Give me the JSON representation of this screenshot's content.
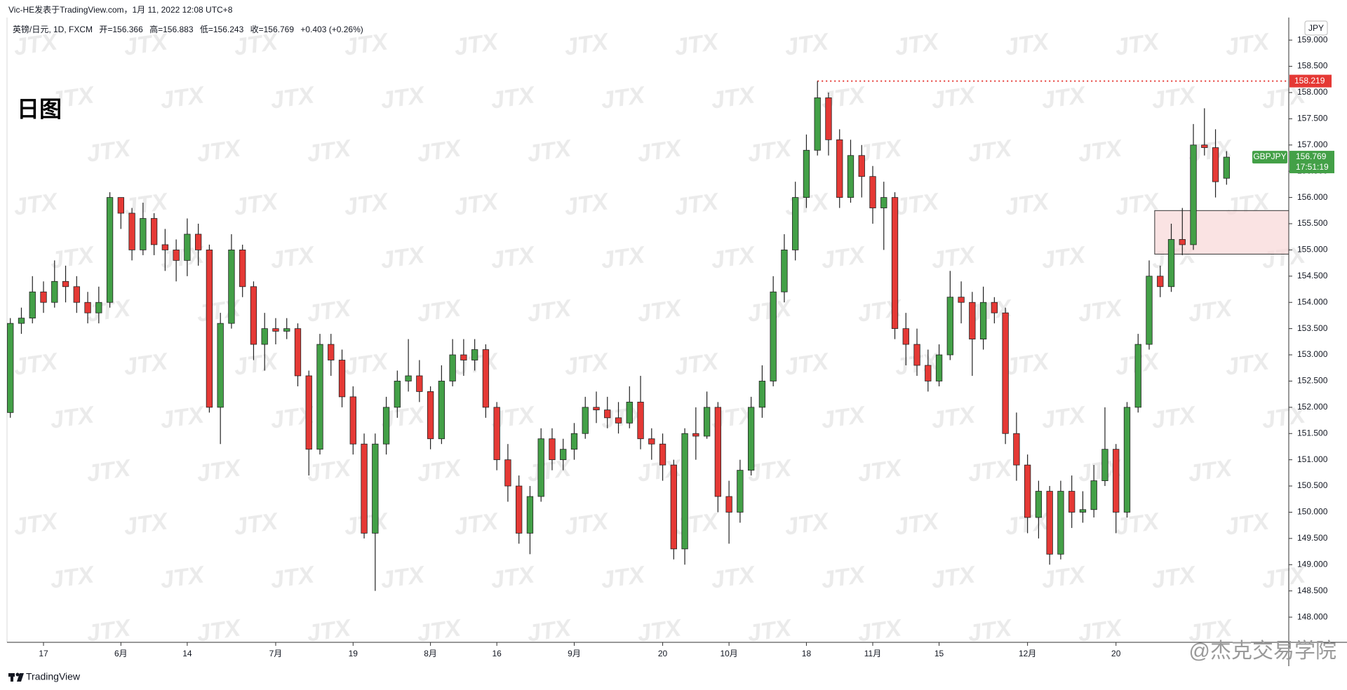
{
  "header": {
    "author": "Vic-HE发表于TradingView.com，1月 11, 2022 12:08 UTC+8",
    "title": "日图",
    "footer": "TradingView",
    "watermark": "JTX",
    "signature": "@杰克交易学院"
  },
  "legend": {
    "symbol": "英镑/日元, 1D, FXCM",
    "open": "开=",
    "high": "高=",
    "low": "低=",
    "close": "收=",
    "change": "+0.403 (+0.26%)"
  },
  "chart_data": {
    "type": "candlestick",
    "currency": "JPY",
    "countdown": "17:51:19",
    "up_color": "#43a047",
    "down_color": "#e53935",
    "wick_color": "#222222",
    "ylim": [
      147.52,
      159.43
    ],
    "yticks": [
      {
        "value": 148,
        "label": "148.000"
      },
      {
        "value": 148.5,
        "label": "148.500"
      },
      {
        "value": 149,
        "label": "149.000"
      },
      {
        "value": 149.5,
        "label": "149.500"
      },
      {
        "value": 150,
        "label": "150.000"
      },
      {
        "value": 150.5,
        "label": "150.500"
      },
      {
        "value": 151,
        "label": "151.000"
      },
      {
        "value": 151.5,
        "label": "151.500"
      },
      {
        "value": 152,
        "label": "152.000"
      },
      {
        "value": 152.5,
        "label": "152.500"
      },
      {
        "value": 153,
        "label": "153.000"
      },
      {
        "value": 153.5,
        "label": "153.500"
      },
      {
        "value": 154,
        "label": "154.000"
      },
      {
        "value": 154.5,
        "label": "154.500"
      },
      {
        "value": 155,
        "label": "155.000"
      },
      {
        "value": 155.5,
        "label": "155.500"
      },
      {
        "value": 156,
        "label": "156.000"
      },
      {
        "value": 156.5,
        "label": "156.500"
      },
      {
        "value": 157,
        "label": "157.000"
      },
      {
        "value": 157.5,
        "label": "157.500"
      },
      {
        "value": 158,
        "label": "158.000"
      },
      {
        "value": 158.5,
        "label": "158.500"
      },
      {
        "value": 159,
        "label": "159.000"
      }
    ],
    "categories": [
      null,
      null,
      null,
      "17",
      null,
      null,
      null,
      null,
      null,
      null,
      "6月",
      null,
      null,
      null,
      null,
      null,
      "14",
      null,
      null,
      null,
      null,
      null,
      null,
      null,
      "7月",
      null,
      null,
      null,
      null,
      null,
      null,
      "19",
      null,
      null,
      null,
      null,
      null,
      null,
      "8月",
      null,
      null,
      null,
      null,
      null,
      "16",
      null,
      null,
      null,
      null,
      null,
      null,
      "9月",
      null,
      null,
      null,
      null,
      null,
      null,
      null,
      "20",
      null,
      null,
      null,
      null,
      null,
      "10月",
      null,
      null,
      null,
      null,
      null,
      null,
      "18",
      null,
      null,
      null,
      null,
      null,
      "11月",
      null,
      null,
      null,
      null,
      null,
      "15",
      null,
      null,
      null,
      null,
      null,
      null,
      null,
      "12月",
      null,
      null,
      null,
      null,
      null,
      null,
      null,
      "20",
      null,
      null,
      null,
      null,
      null,
      null,
      null,
      null,
      null,
      null
    ],
    "zone": {
      "start": 104,
      "top": 155.75,
      "bottom": 154.92,
      "color": "#f8d7d7"
    },
    "high_line": {
      "candle": 73,
      "color": "#e53935"
    },
    "series": [
      {
        "name": "GBPJPY",
        "color": "#43a047",
        "values": [
          [
            151.9,
            153.7,
            151.8,
            153.6
          ],
          [
            153.6,
            153.9,
            153.4,
            153.7
          ],
          [
            153.7,
            154.5,
            153.6,
            154.2
          ],
          [
            154.2,
            154.4,
            153.8,
            154.0
          ],
          [
            154.0,
            154.8,
            153.9,
            154.4
          ],
          [
            154.4,
            154.7,
            154.0,
            154.3
          ],
          [
            154.3,
            154.5,
            153.8,
            154.0
          ],
          [
            154.0,
            154.2,
            153.6,
            153.8
          ],
          [
            153.8,
            154.3,
            153.6,
            154.0
          ],
          [
            154.0,
            156.1,
            153.9,
            156.0
          ],
          [
            156.0,
            156.0,
            155.4,
            155.7
          ],
          [
            155.7,
            155.8,
            154.8,
            155.0
          ],
          [
            155.0,
            155.9,
            154.9,
            155.6
          ],
          [
            155.6,
            155.7,
            154.9,
            155.1
          ],
          [
            155.1,
            155.4,
            154.6,
            155.0
          ],
          [
            155.0,
            155.2,
            154.4,
            154.8
          ],
          [
            154.8,
            155.6,
            154.5,
            155.3
          ],
          [
            155.3,
            155.5,
            154.7,
            155.0
          ],
          [
            155.0,
            155.1,
            151.9,
            152.0
          ],
          [
            152.0,
            153.8,
            151.3,
            153.6
          ],
          [
            153.6,
            155.3,
            153.5,
            155.0
          ],
          [
            155.0,
            155.1,
            154.1,
            154.3
          ],
          [
            154.3,
            154.4,
            152.9,
            153.2
          ],
          [
            153.2,
            153.8,
            152.7,
            153.5
          ],
          [
            153.5,
            153.7,
            153.2,
            153.45
          ],
          [
            153.45,
            153.7,
            153.3,
            153.5
          ],
          [
            153.5,
            153.6,
            152.4,
            152.6
          ],
          [
            152.6,
            152.7,
            150.7,
            151.2
          ],
          [
            151.2,
            153.4,
            151.1,
            153.2
          ],
          [
            153.2,
            153.4,
            152.6,
            152.9
          ],
          [
            152.9,
            153.1,
            152.0,
            152.2
          ],
          [
            152.2,
            152.4,
            151.1,
            151.3
          ],
          [
            151.3,
            151.5,
            149.5,
            149.6
          ],
          [
            149.6,
            151.5,
            148.5,
            151.3
          ],
          [
            151.3,
            152.2,
            151.1,
            152.0
          ],
          [
            152.0,
            152.7,
            151.8,
            152.5
          ],
          [
            152.5,
            153.3,
            152.3,
            152.6
          ],
          [
            152.6,
            152.9,
            152.1,
            152.3
          ],
          [
            152.3,
            152.4,
            151.2,
            151.4
          ],
          [
            151.4,
            152.8,
            151.3,
            152.5
          ],
          [
            152.5,
            153.3,
            152.4,
            153.0
          ],
          [
            153.0,
            153.3,
            152.6,
            152.9
          ],
          [
            152.9,
            153.3,
            152.7,
            153.1
          ],
          [
            153.1,
            153.2,
            151.8,
            152.0
          ],
          [
            152.0,
            152.1,
            150.8,
            151.0
          ],
          [
            151.0,
            151.3,
            150.2,
            150.5
          ],
          [
            150.5,
            150.7,
            149.4,
            149.6
          ],
          [
            149.6,
            150.5,
            149.2,
            150.3
          ],
          [
            150.3,
            151.6,
            150.2,
            151.4
          ],
          [
            151.4,
            151.6,
            150.8,
            151.0
          ],
          [
            151.0,
            151.4,
            150.8,
            151.2
          ],
          [
            151.2,
            151.7,
            151.0,
            151.5
          ],
          [
            151.5,
            152.2,
            151.4,
            152.0
          ],
          [
            152.0,
            152.3,
            151.7,
            151.95
          ],
          [
            151.95,
            152.2,
            151.6,
            151.8
          ],
          [
            151.8,
            152.1,
            151.5,
            151.7
          ],
          [
            151.7,
            152.4,
            151.6,
            152.1
          ],
          [
            152.1,
            152.6,
            151.2,
            151.4
          ],
          [
            151.4,
            151.6,
            151.0,
            151.3
          ],
          [
            151.3,
            151.5,
            150.6,
            150.9
          ],
          [
            150.9,
            151.0,
            149.1,
            149.3
          ],
          [
            149.3,
            151.6,
            149.0,
            151.5
          ],
          [
            151.5,
            152.0,
            151.0,
            151.45
          ],
          [
            151.45,
            152.3,
            151.4,
            152.0
          ],
          [
            152.0,
            152.1,
            150.0,
            150.3
          ],
          [
            150.3,
            150.6,
            149.4,
            150.0
          ],
          [
            150.0,
            151.0,
            149.8,
            150.8
          ],
          [
            150.8,
            152.2,
            150.7,
            152.0
          ],
          [
            152.0,
            152.8,
            151.8,
            152.5
          ],
          [
            152.5,
            154.5,
            152.4,
            154.2
          ],
          [
            154.2,
            155.3,
            154.0,
            155.0
          ],
          [
            155.0,
            156.3,
            154.8,
            156.0
          ],
          [
            156.0,
            157.2,
            155.8,
            156.9
          ],
          [
            156.9,
            158.219,
            156.8,
            157.9
          ],
          [
            157.9,
            158.0,
            156.8,
            157.1
          ],
          [
            157.1,
            157.3,
            155.8,
            156.0
          ],
          [
            156.0,
            157.1,
            155.9,
            156.8
          ],
          [
            156.8,
            157.0,
            156.0,
            156.4
          ],
          [
            156.4,
            156.6,
            155.5,
            155.8
          ],
          [
            155.8,
            156.3,
            155.0,
            156.0
          ],
          [
            156.0,
            156.1,
            153.3,
            153.5
          ],
          [
            153.5,
            153.8,
            152.8,
            153.2
          ],
          [
            153.2,
            153.5,
            152.6,
            152.8
          ],
          [
            152.8,
            153.1,
            152.3,
            152.5
          ],
          [
            152.5,
            153.2,
            152.4,
            153.0
          ],
          [
            153.0,
            154.6,
            152.9,
            154.1
          ],
          [
            154.1,
            154.4,
            153.6,
            154.0
          ],
          [
            154.0,
            154.2,
            152.6,
            153.3
          ],
          [
            153.3,
            154.3,
            153.1,
            154.0
          ],
          [
            154.0,
            154.1,
            153.6,
            153.8
          ],
          [
            153.8,
            153.9,
            151.3,
            151.5
          ],
          [
            151.5,
            151.9,
            150.6,
            150.9
          ],
          [
            150.9,
            151.1,
            149.6,
            149.9
          ],
          [
            149.9,
            150.6,
            149.5,
            150.4
          ],
          [
            150.4,
            150.5,
            149.0,
            149.2
          ],
          [
            149.2,
            150.6,
            149.1,
            150.4
          ],
          [
            150.4,
            150.7,
            149.7,
            150.0
          ],
          [
            150.0,
            150.4,
            149.8,
            150.05
          ],
          [
            150.05,
            150.9,
            149.9,
            150.6
          ],
          [
            150.6,
            152.0,
            150.5,
            151.2
          ],
          [
            151.2,
            151.3,
            149.6,
            150.0
          ],
          [
            150.0,
            152.1,
            149.9,
            152.0
          ],
          [
            152.0,
            153.4,
            151.9,
            153.2
          ],
          [
            153.2,
            154.8,
            153.1,
            154.5
          ],
          [
            154.5,
            154.7,
            154.1,
            154.3
          ],
          [
            154.3,
            155.5,
            154.2,
            155.2
          ],
          [
            155.2,
            155.8,
            154.9,
            155.1
          ],
          [
            155.1,
            157.4,
            155.0,
            157.0
          ],
          [
            157.0,
            157.7,
            156.8,
            156.95
          ],
          [
            156.95,
            157.3,
            156.0,
            156.3
          ],
          [
            156.366,
            156.883,
            156.243,
            156.769
          ]
        ]
      }
    ]
  }
}
